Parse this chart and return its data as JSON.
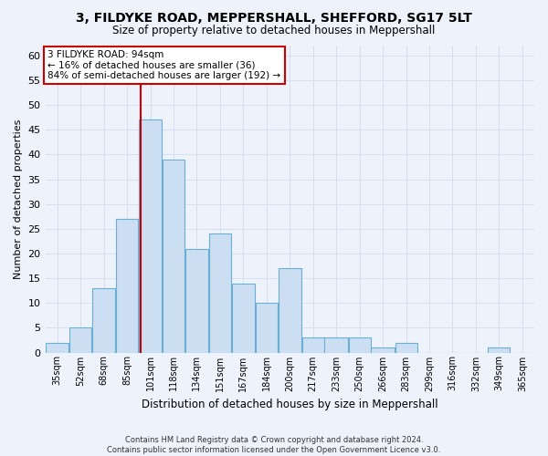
{
  "title_line1": "3, FILDYKE ROAD, MEPPERSHALL, SHEFFORD, SG17 5LT",
  "title_line2": "Size of property relative to detached houses in Meppershall",
  "xlabel": "Distribution of detached houses by size in Meppershall",
  "ylabel": "Number of detached properties",
  "footer_line1": "Contains HM Land Registry data © Crown copyright and database right 2024.",
  "footer_line2": "Contains public sector information licensed under the Open Government Licence v3.0.",
  "annotation_title": "3 FILDYKE ROAD: 94sqm",
  "annotation_line1": "← 16% of detached houses are smaller (36)",
  "annotation_line2": "84% of semi-detached houses are larger (192) →",
  "vline_x": 94,
  "bar_categories": [
    "35sqm",
    "52sqm",
    "68sqm",
    "85sqm",
    "101sqm",
    "118sqm",
    "134sqm",
    "151sqm",
    "167sqm",
    "184sqm",
    "200sqm",
    "217sqm",
    "233sqm",
    "250sqm",
    "266sqm",
    "283sqm",
    "299sqm",
    "316sqm",
    "332sqm",
    "349sqm",
    "365sqm"
  ],
  "bar_edges": [
    26.5,
    43.5,
    59.5,
    76.5,
    92.5,
    109.5,
    125.5,
    142.5,
    158.5,
    175.5,
    191.5,
    208.5,
    224.5,
    241.5,
    257.5,
    274.5,
    290.5,
    307.5,
    323.5,
    340.5,
    356.5,
    373.5
  ],
  "bar_heights": [
    2,
    5,
    13,
    27,
    47,
    39,
    21,
    24,
    14,
    10,
    17,
    3,
    3,
    3,
    1,
    2,
    0,
    0,
    0,
    1,
    0
  ],
  "bar_color": "#ccdff2",
  "bar_edgecolor": "#6aaed6",
  "ylim": [
    0,
    62
  ],
  "yticks": [
    0,
    5,
    10,
    15,
    20,
    25,
    30,
    35,
    40,
    45,
    50,
    55,
    60
  ],
  "vline_color": "#cc0000",
  "annotation_box_edgecolor": "#cc0000",
  "annotation_box_facecolor": "#ffffff",
  "grid_color": "#d5dff0",
  "background_color": "#eef2fb"
}
